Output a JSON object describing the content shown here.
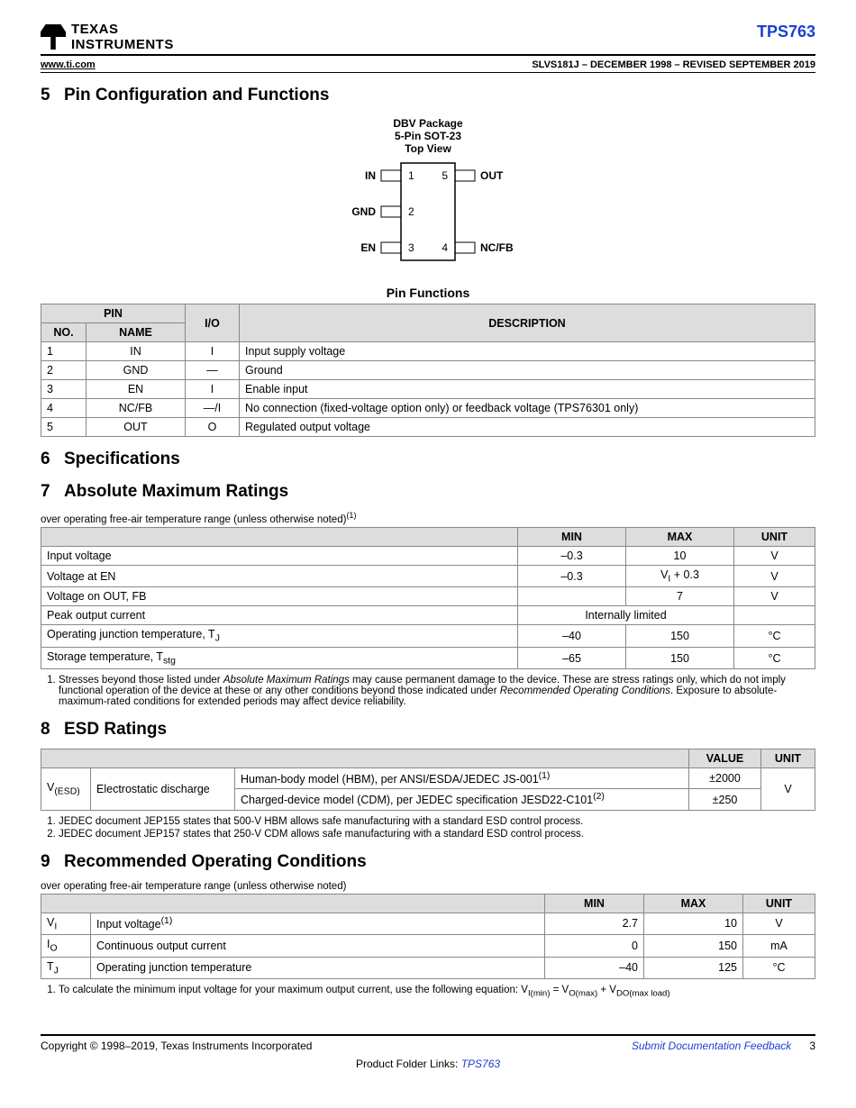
{
  "header": {
    "company1": "TEXAS",
    "company2": "INSTRUMENTS",
    "part": "TPS763",
    "url": "www.ti.com",
    "docid": "SLVS181J – DECEMBER 1998 – REVISED SEPTEMBER 2019"
  },
  "s5": {
    "num": "5",
    "title": "Pin Configuration and Functions",
    "pkg_title_l1": "DBV Package",
    "pkg_title_l2": "5-Pin SOT-23",
    "pkg_title_l3": "Top View",
    "pins": {
      "p1_label": "IN",
      "p1_num": "1",
      "p2_label": "GND",
      "p2_num": "2",
      "p3_label": "EN",
      "p3_num": "3",
      "p4_label": "NC/FB",
      "p4_num": "4",
      "p5_label": "OUT",
      "p5_num": "5"
    },
    "table_title": "Pin Functions",
    "headers": {
      "pin": "PIN",
      "no": "NO.",
      "name": "NAME",
      "io": "I/O",
      "desc": "DESCRIPTION"
    },
    "rows": [
      {
        "no": "1",
        "name": "IN",
        "io": "I",
        "desc": "Input supply voltage"
      },
      {
        "no": "2",
        "name": "GND",
        "io": "—",
        "desc": "Ground"
      },
      {
        "no": "3",
        "name": "EN",
        "io": "I",
        "desc": "Enable input"
      },
      {
        "no": "4",
        "name": "NC/FB",
        "io": "—/I",
        "desc": "No connection (fixed-voltage option only) or feedback voltage (TPS76301 only)"
      },
      {
        "no": "5",
        "name": "OUT",
        "io": "O",
        "desc": "Regulated output voltage"
      }
    ]
  },
  "s6": {
    "num": "6",
    "title": "Specifications"
  },
  "s7": {
    "num": "7",
    "title": "Absolute Maximum Ratings",
    "note": "over operating free-air temperature range (unless otherwise noted)",
    "headers": {
      "min": "MIN",
      "max": "MAX",
      "unit": "UNIT"
    },
    "rows": [
      {
        "param": "Input voltage",
        "min": "–0.3",
        "max": "10",
        "unit": "V"
      },
      {
        "param": "Voltage at EN",
        "min": "–0.3",
        "max_html": "V<sub>I</sub> + 0.3",
        "unit": "V"
      },
      {
        "param": "Voltage on OUT, FB",
        "min": "",
        "max": "7",
        "unit": "V"
      },
      {
        "param": "Peak output current",
        "span": "Internally limited",
        "unit": ""
      },
      {
        "param_html": "Operating junction temperature, T<sub>J</sub>",
        "min": "–40",
        "max": "150",
        "unit": "°C"
      },
      {
        "param_html": "Storage temperature, T<sub>stg</sub>",
        "min": "–65",
        "max": "150",
        "unit": "°C"
      }
    ],
    "footnote": "Stresses beyond those listed under Absolute Maximum Ratings may cause permanent damage to the device. These are stress ratings only, which do not imply functional operation of the device at these or any other conditions beyond those indicated under Recommended Operating Conditions. Exposure to absolute-maximum-rated conditions for extended periods may affect device reliability."
  },
  "s8": {
    "num": "8",
    "title": "ESD Ratings",
    "headers": {
      "value": "VALUE",
      "unit": "UNIT"
    },
    "sym_html": "V<sub>(ESD)</sub>",
    "label": "Electrostatic discharge",
    "rows": [
      {
        "desc_html": "Human-body model (HBM), per ANSI/ESDA/JEDEC JS-001<sup>(1)</sup>",
        "value": "±2000"
      },
      {
        "desc_html": "Charged-device model (CDM), per JEDEC specification JESD22-C101<sup>(2)</sup>",
        "value": "±250"
      }
    ],
    "unit": "V",
    "footnotes": [
      "JEDEC document JEP155 states that 500-V HBM allows safe manufacturing with a standard ESD control process.",
      "JEDEC document JEP157 states that 250-V CDM allows safe manufacturing with a standard ESD control process."
    ]
  },
  "s9": {
    "num": "9",
    "title": "Recommended Operating Conditions",
    "note": "over operating free-air temperature range (unless otherwise noted)",
    "headers": {
      "min": "MIN",
      "max": "MAX",
      "unit": "UNIT"
    },
    "rows": [
      {
        "sym_html": "V<sub>I</sub>",
        "param_html": "Input voltage<sup>(1)</sup>",
        "min": "2.7",
        "max": "10",
        "unit": "V"
      },
      {
        "sym_html": "I<sub>O</sub>",
        "param": "Continuous output current",
        "min": "0",
        "max": "150",
        "unit": "mA"
      },
      {
        "sym_html": "T<sub>J</sub>",
        "param": "Operating junction temperature",
        "min": "–40",
        "max": "125",
        "unit": "°C"
      }
    ],
    "footnote_html": "To calculate the minimum input voltage for your maximum output current, use the following equation: V<sub>I(min)</sub> = V<sub>O(max)</sub> + V<sub>DO(max load)</sub>"
  },
  "footer": {
    "copyright": "Copyright © 1998–2019, Texas Instruments Incorporated",
    "feedback": "Submit Documentation Feedback",
    "page": "3",
    "links_label": "Product Folder Links:",
    "link": "TPS763"
  }
}
